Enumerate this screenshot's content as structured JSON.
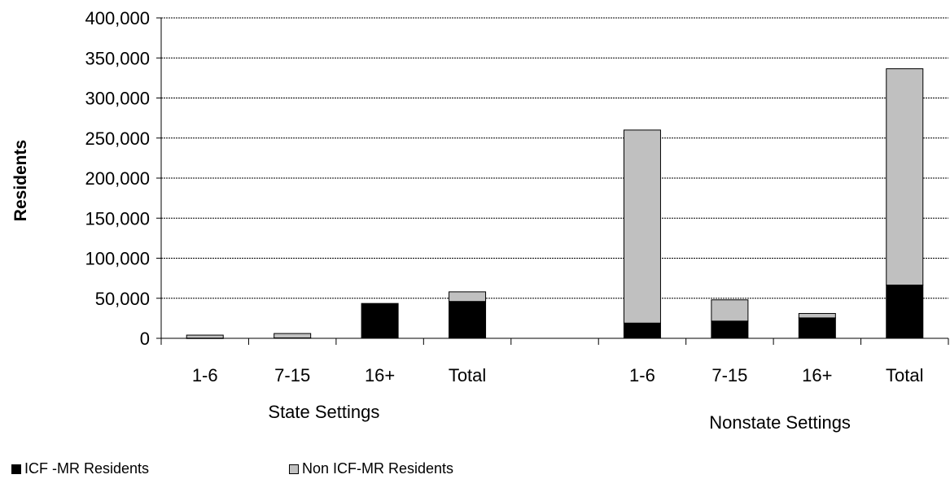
{
  "chart_data": {
    "type": "bar",
    "stacked": true,
    "ylabel": "Residents",
    "ylim": [
      0,
      400000
    ],
    "yticks": [
      "0",
      "50,000",
      "100,000",
      "150,000",
      "200,000",
      "250,000",
      "300,000",
      "350,000",
      "400,000"
    ],
    "ytick_values": [
      0,
      50000,
      100000,
      150000,
      200000,
      250000,
      300000,
      350000,
      400000
    ],
    "grid": true,
    "groups": [
      {
        "label": "State Settings",
        "categories": [
          "1-6",
          "7-15",
          "16+",
          "Total"
        ]
      },
      {
        "label": "Nonstate Settings",
        "categories": [
          "1-6",
          "7-15",
          "16+",
          "Total"
        ]
      }
    ],
    "series": [
      {
        "name": "ICF -MR Residents",
        "color": "#000000",
        "values": [
          200,
          500,
          43500,
          46000,
          19000,
          21500,
          25500,
          66500
        ]
      },
      {
        "name": "Non ICF-MR Residents",
        "color": "#c0c0c0",
        "values": [
          3800,
          5500,
          0,
          12000,
          241000,
          26500,
          5500,
          270000
        ]
      }
    ],
    "legend_position": "bottom-left"
  }
}
